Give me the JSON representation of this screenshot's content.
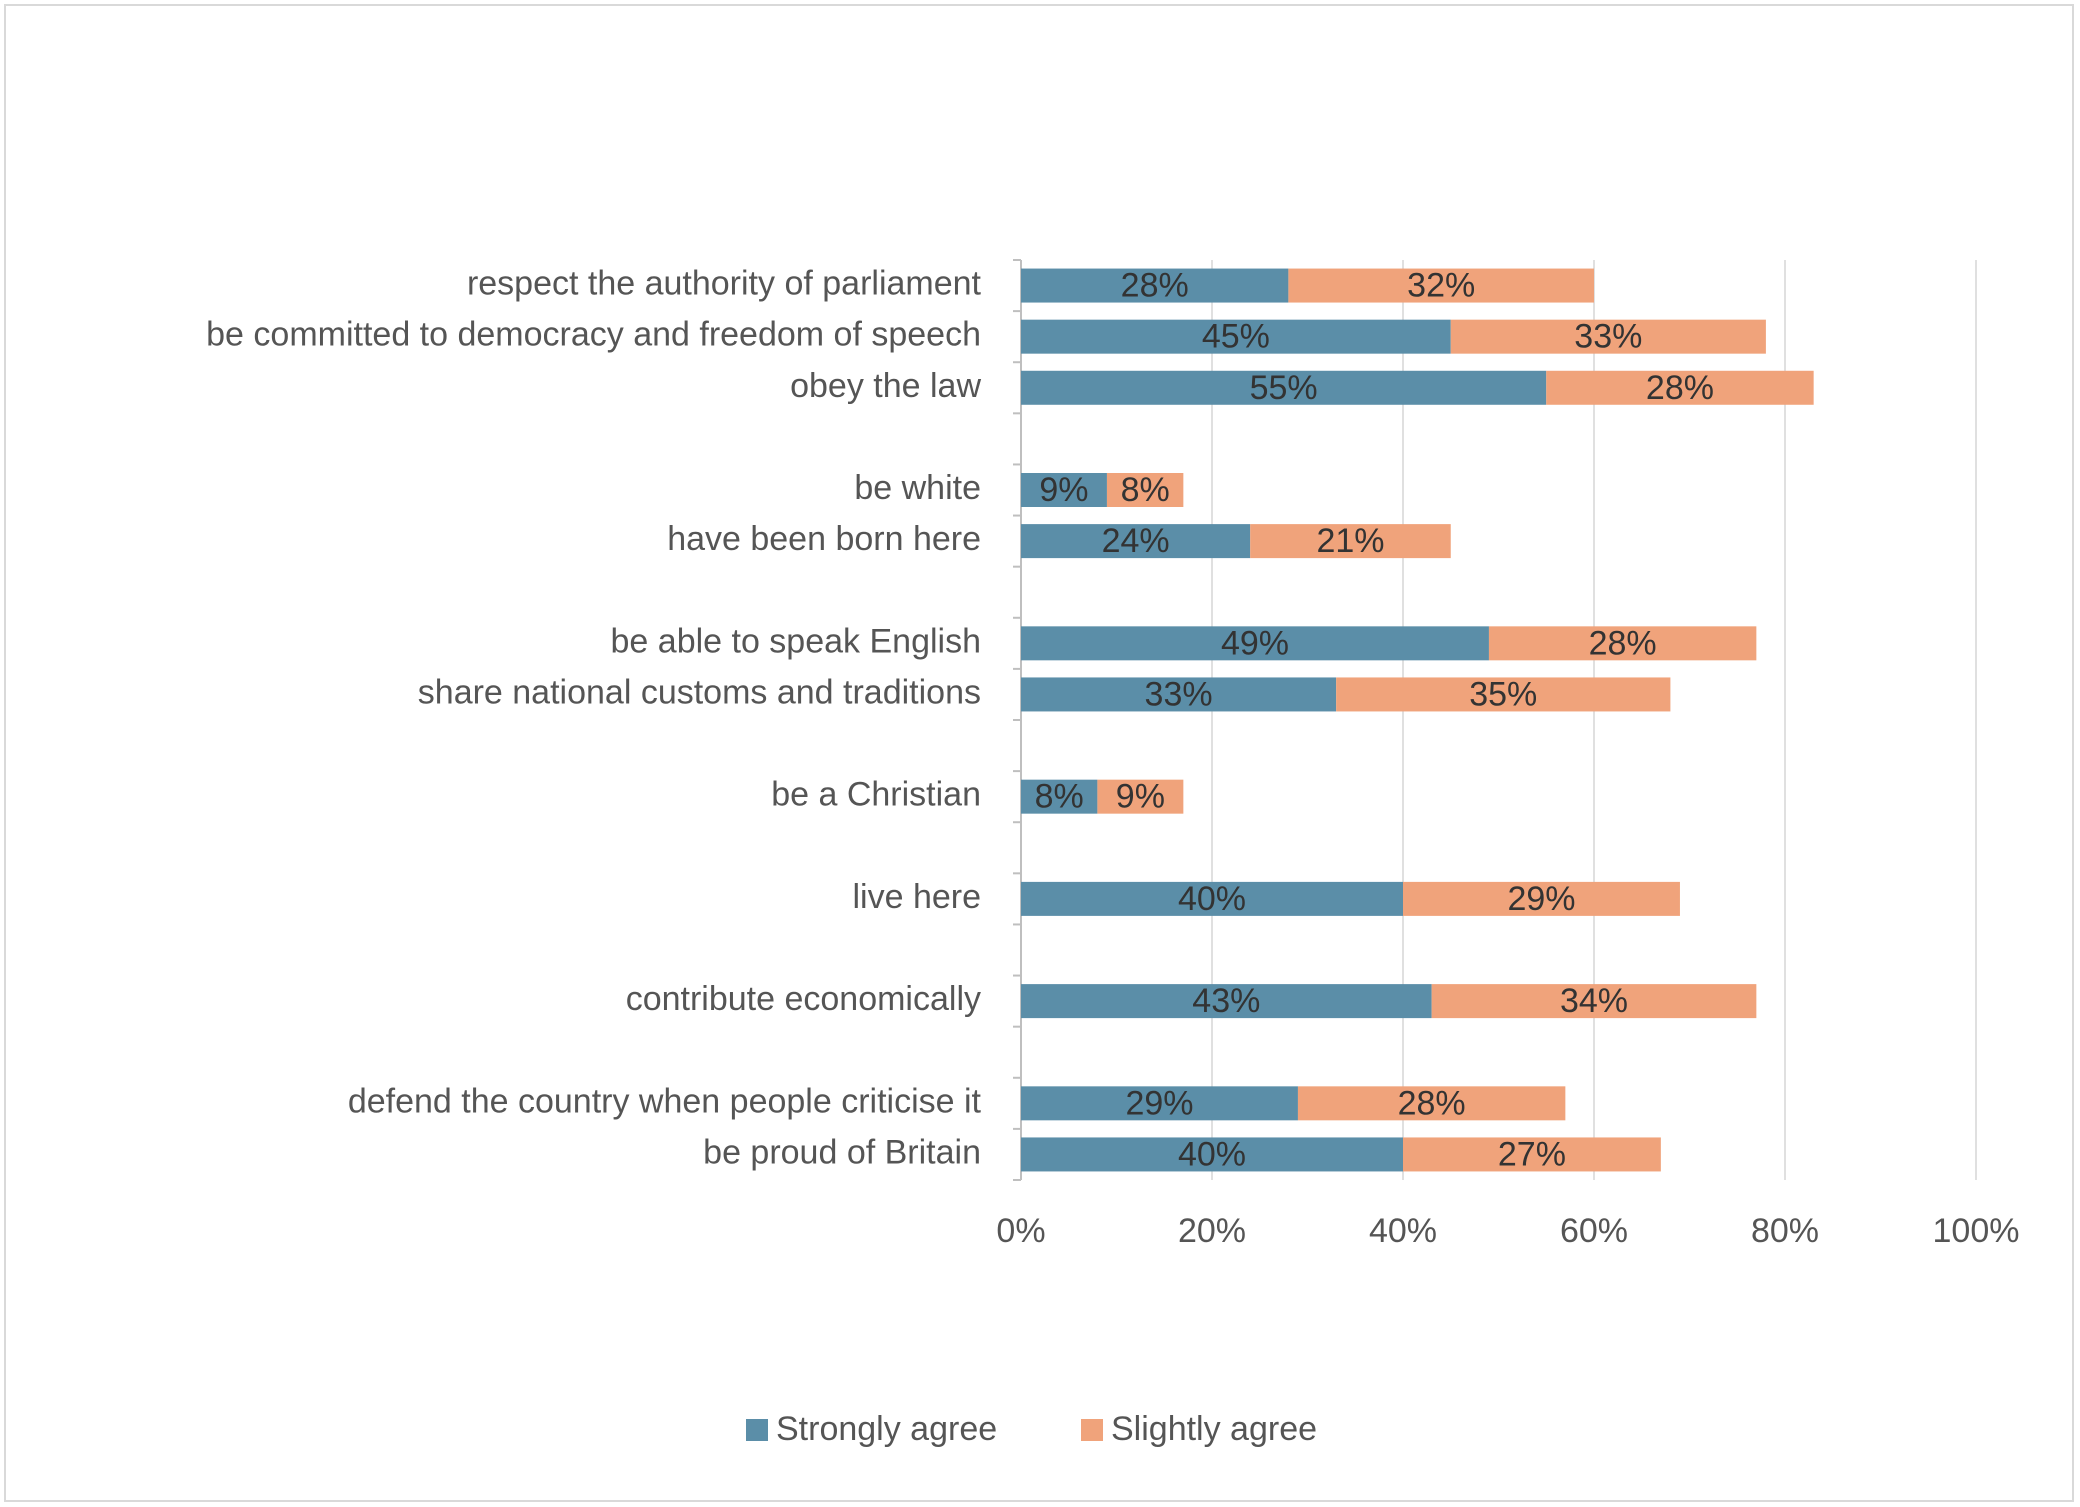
{
  "chart_data": {
    "type": "stacked-bar-horizontal",
    "categories": [
      "respect the authority of parliament",
      "be committed to democracy and freedom of speech",
      "obey the law",
      null,
      "be white",
      "have been born here",
      null,
      "be able to speak English",
      "share national customs and traditions",
      null,
      "be a Christian",
      null,
      "live here",
      null,
      "contribute economically",
      null,
      "defend the country when people criticise it",
      "be proud of Britain"
    ],
    "series": [
      {
        "name": "Strongly agree",
        "color": "#5b8ea8",
        "values": [
          28,
          45,
          55,
          null,
          9,
          24,
          null,
          49,
          33,
          null,
          8,
          null,
          40,
          null,
          43,
          null,
          29,
          40
        ],
        "value_labels": [
          "28%",
          "45%",
          "55%",
          null,
          "9%",
          "24%",
          null,
          "49%",
          "33%",
          null,
          "8%",
          null,
          "40%",
          null,
          "43%",
          null,
          "29%",
          "40%"
        ]
      },
      {
        "name": "Slightly agree",
        "color": "#f0a37b",
        "values": [
          32,
          33,
          28,
          null,
          8,
          21,
          null,
          28,
          35,
          null,
          9,
          null,
          29,
          null,
          34,
          null,
          28,
          27
        ],
        "value_labels": [
          "32%",
          "33%",
          "28%",
          null,
          "8%",
          "21%",
          null,
          "28%",
          "35%",
          null,
          "9%",
          null,
          "29%",
          null,
          "34%",
          null,
          "28%",
          "27%"
        ]
      }
    ],
    "xlim": [
      0,
      100
    ],
    "xticks": [
      {
        "value": 0,
        "label": "0%"
      },
      {
        "value": 20,
        "label": "20%"
      },
      {
        "value": 40,
        "label": "40%"
      },
      {
        "value": 60,
        "label": "60%"
      },
      {
        "value": 80,
        "label": "80%"
      },
      {
        "value": 100,
        "label": "100%"
      }
    ],
    "grid": true,
    "legend": "bottom"
  }
}
